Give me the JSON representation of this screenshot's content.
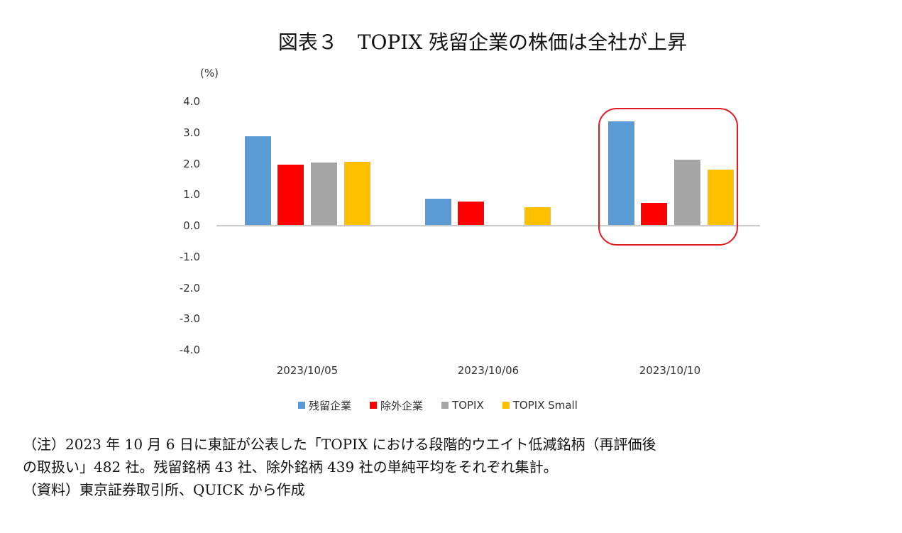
{
  "title": "図表３　TOPIX 残留企業の株価は全社が上昇",
  "chart_data": {
    "type": "bar",
    "title": "図表３　TOPIX 残留企業の株価は全社が上昇",
    "ylabel": "(%)",
    "xlabel": "",
    "ylim": [
      -4.0,
      4.0
    ],
    "yticks": [
      "4.0",
      "3.0",
      "2.0",
      "1.0",
      "0.0",
      "-1.0",
      "-2.0",
      "-3.0",
      "-4.0"
    ],
    "grid": false,
    "legend_position": "bottom",
    "categories": [
      "2023/10/05",
      "2023/10/06",
      "2023/10/10"
    ],
    "series": [
      {
        "name": "残留企業",
        "color": "#5b9bd5",
        "values": [
          2.88,
          0.87,
          3.36
        ]
      },
      {
        "name": "除外企業",
        "color": "#ff0000",
        "values": [
          1.97,
          0.78,
          0.73
        ]
      },
      {
        "name": "TOPIX",
        "color": "#a5a5a5",
        "values": [
          2.03,
          null,
          2.13
        ]
      },
      {
        "name": "TOPIX Small",
        "color": "#ffc000",
        "values": [
          2.06,
          0.59,
          1.81
        ]
      }
    ],
    "annotations": [
      {
        "type": "rounded-rectangle",
        "color": "#e21b23",
        "target_category": "2023/10/10"
      }
    ]
  },
  "notes": {
    "line1": "（注）2023 年 10 月 6 日に東証が公表した「TOPIX における段階的ウエイト低減銘柄（再評価後",
    "line2": "の取扱い」482 社。残留銘柄 43 社、除外銘柄 439 社の単純平均をそれぞれ集計。",
    "source": "（資料）東京証券取引所、QUICK から作成"
  }
}
